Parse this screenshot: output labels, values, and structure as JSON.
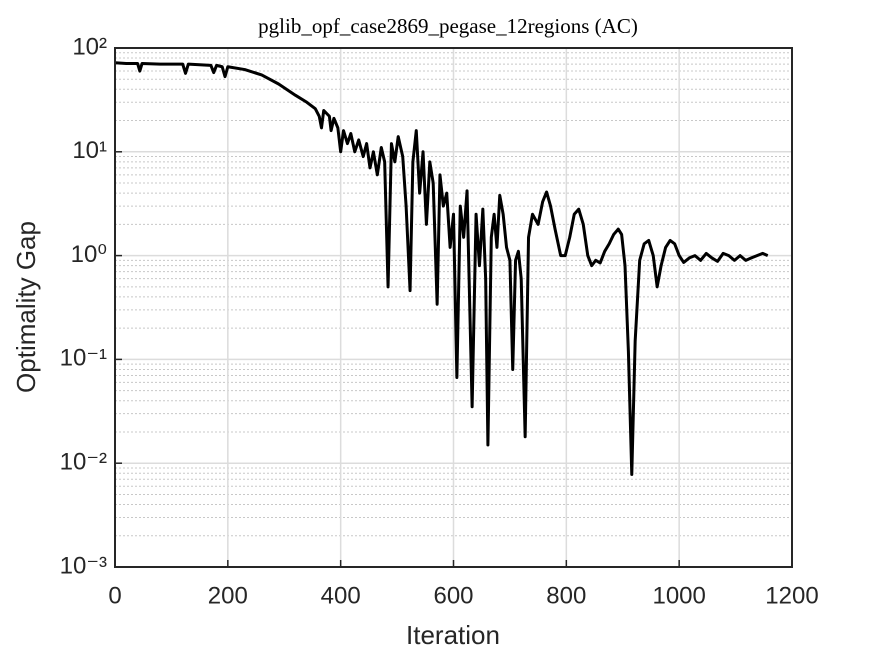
{
  "chart_data": {
    "type": "line",
    "title": "pglib_opf_case2869_pegase_12regions (AC)",
    "xlabel": "Iteration",
    "ylabel": "Optimality Gap",
    "yscale": "log",
    "grid": true,
    "minor_grid": true,
    "color": "#000000",
    "xlim": [
      0,
      1200
    ],
    "xticks": [
      0,
      200,
      400,
      600,
      800,
      1000,
      1200
    ],
    "ylim": [
      0.001,
      100
    ],
    "yticks": [
      {
        "value": 0.001,
        "label": "10⁻³"
      },
      {
        "value": 0.01,
        "label": "10⁻²"
      },
      {
        "value": 0.1,
        "label": "10⁻¹"
      },
      {
        "value": 1,
        "label": "10⁰"
      },
      {
        "value": 10,
        "label": "10¹"
      },
      {
        "value": 100,
        "label": "10²"
      }
    ],
    "x": [
      0,
      20,
      40,
      44,
      48,
      80,
      120,
      125,
      130,
      170,
      175,
      180,
      190,
      195,
      200,
      230,
      260,
      290,
      320,
      340,
      355,
      362,
      366,
      370,
      380,
      383,
      388,
      395,
      400,
      405,
      412,
      418,
      425,
      432,
      440,
      446,
      452,
      458,
      465,
      472,
      478,
      484,
      490,
      496,
      502,
      510,
      516,
      523,
      528,
      534,
      540,
      546,
      552,
      558,
      564,
      571,
      576,
      582,
      588,
      594,
      600,
      606,
      612,
      618,
      624,
      628,
      633,
      640,
      646,
      652,
      657,
      661,
      667,
      672,
      677,
      682,
      688,
      694,
      700,
      705,
      710,
      715,
      720,
      727,
      733,
      740,
      750,
      758,
      765,
      772,
      780,
      790,
      798,
      806,
      814,
      822,
      830,
      838,
      845,
      852,
      860,
      868,
      876,
      884,
      892,
      898,
      904,
      910,
      916,
      922,
      930,
      938,
      946,
      954,
      961,
      968,
      976,
      984,
      992,
      1000,
      1008,
      1018,
      1028,
      1038,
      1048,
      1058,
      1068,
      1078,
      1088,
      1098,
      1108,
      1118,
      1128,
      1138,
      1148,
      1157
    ],
    "values": [
      72,
      71,
      71,
      60,
      71,
      70,
      70,
      57,
      70,
      68,
      58,
      68,
      66,
      53,
      66,
      62,
      55,
      45,
      35,
      30,
      26,
      22,
      17,
      25,
      22,
      16,
      21,
      17,
      10,
      16,
      12,
      15,
      10,
      13,
      9,
      12,
      7,
      10,
      6,
      11,
      8,
      0.5,
      12,
      8,
      14,
      9,
      3,
      0.46,
      8,
      16,
      4,
      10,
      2,
      8,
      5,
      0.34,
      6,
      3,
      4,
      1.2,
      2.5,
      0.067,
      3,
      1.5,
      4.2,
      0.5,
      0.035,
      2.5,
      0.8,
      2.8,
      0.6,
      0.015,
      1.5,
      2.5,
      1.2,
      3.8,
      2.5,
      1.2,
      0.9,
      0.08,
      0.9,
      1.1,
      0.6,
      0.018,
      1.5,
      2.5,
      2.0,
      3.3,
      4.1,
      3.0,
      1.8,
      1.0,
      1.0,
      1.5,
      2.5,
      2.8,
      2.0,
      1.0,
      0.8,
      0.9,
      0.85,
      1.1,
      1.3,
      1.6,
      1.8,
      1.6,
      0.8,
      0.12,
      0.0078,
      0.15,
      0.9,
      1.3,
      1.4,
      1.0,
      0.5,
      0.8,
      1.2,
      1.4,
      1.3,
      1.0,
      0.86,
      0.95,
      1.0,
      0.9,
      1.05,
      0.95,
      0.88,
      1.05,
      1.0,
      0.9,
      1.0,
      0.9,
      0.95,
      1.0,
      1.05,
      1.0
    ]
  }
}
